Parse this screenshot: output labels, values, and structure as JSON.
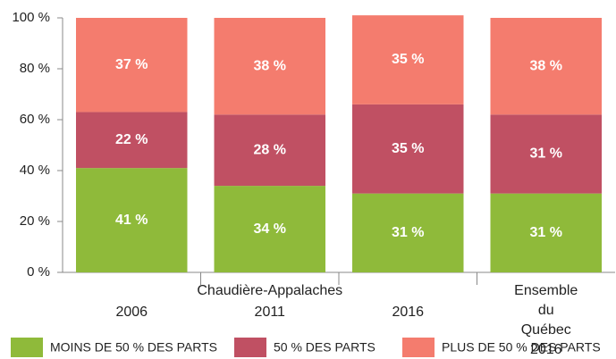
{
  "chart_data": {
    "type": "stacked_bar",
    "group_label": "Chaudière-Appalaches",
    "categories": [
      "2006",
      "2011",
      "2016",
      "Ensemble du\nQuébec 2016"
    ],
    "series": [
      {
        "name": "MOINS DE 50 % DES PARTS",
        "color": "#8fba3a",
        "values": [
          41,
          34,
          31,
          31
        ],
        "value_labels": [
          "41 %",
          "34 %",
          "31 %",
          "31 %"
        ]
      },
      {
        "name": "50 % DES PARTS",
        "color": "#c05063",
        "values": [
          22,
          28,
          35,
          31
        ],
        "value_labels": [
          "22 %",
          "28 %",
          "35 %",
          "31 %"
        ]
      },
      {
        "name": "PLUS DE 50 % DES PARTS",
        "color": "#f47c6e",
        "values": [
          37,
          38,
          35,
          38
        ],
        "value_labels": [
          "37 %",
          "38 %",
          "35 %",
          "38 %"
        ]
      }
    ],
    "ylim": [
      0,
      100
    ],
    "yticks": [
      {
        "value": 0,
        "label": "0 %"
      },
      {
        "value": 20,
        "label": "20 %"
      },
      {
        "value": 40,
        "label": "40 %"
      },
      {
        "value": 60,
        "label": "60 %"
      },
      {
        "value": 80,
        "label": "80 %"
      },
      {
        "value": 100,
        "label": "100 %"
      }
    ],
    "legend": "bottom"
  }
}
